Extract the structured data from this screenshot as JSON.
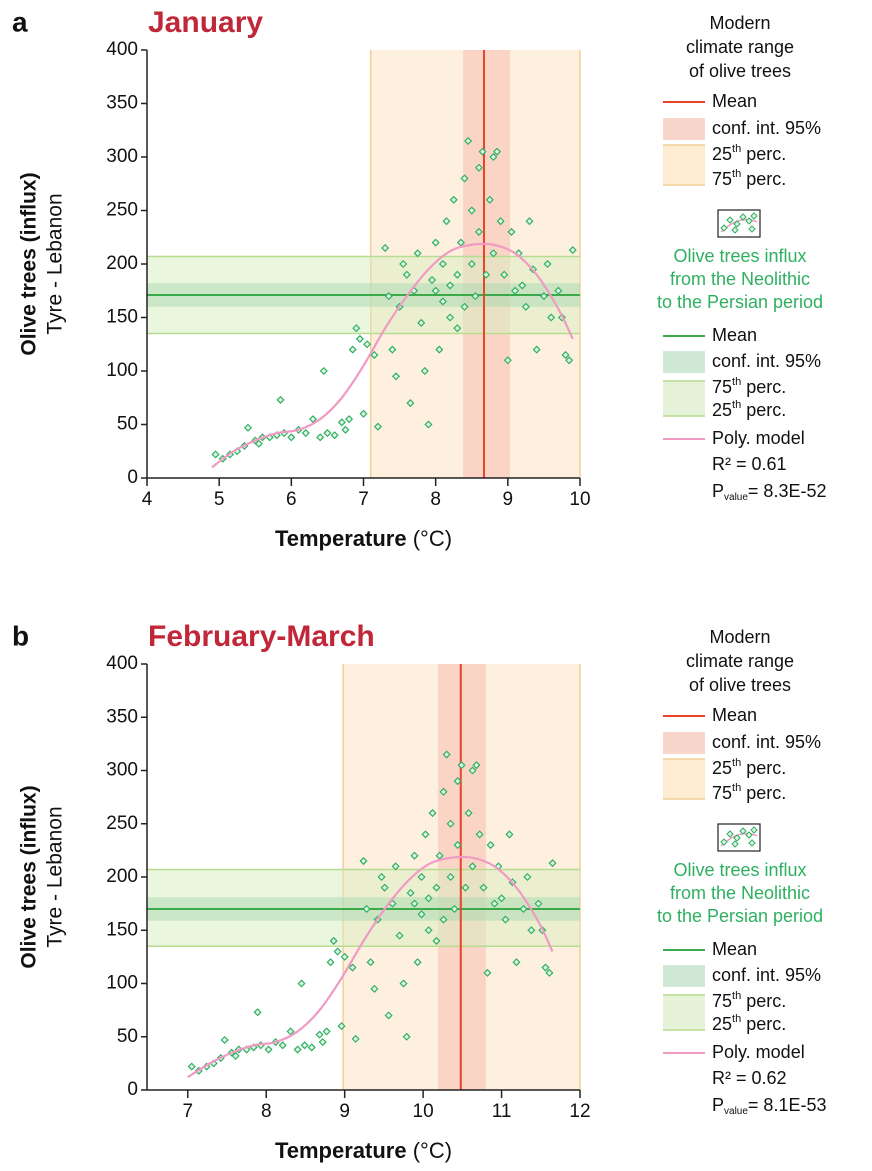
{
  "chart_data": [
    {
      "type": "scatter",
      "panel_label": "a",
      "title": "January",
      "ylabel": [
        "Olive trees (influx)",
        "Tyre - Lebanon"
      ],
      "xlabel": "Temperature",
      "xunit": "(°C)",
      "xlim": [
        4,
        10
      ],
      "xticks": [
        4,
        5,
        6,
        7,
        8,
        9,
        10
      ],
      "ylim": [
        0,
        400
      ],
      "yticks": [
        0,
        50,
        100,
        150,
        200,
        250,
        300,
        350,
        400
      ],
      "modern_range": {
        "mean": 8.67,
        "ci": [
          8.38,
          9.03
        ],
        "p25": 7.1,
        "p75": 10.0,
        "color": "#e8442a"
      },
      "influx_range": {
        "mean": 171,
        "ci": [
          160,
          182
        ],
        "p75": 207,
        "p25": 135,
        "color": "#3aaa4a"
      },
      "points": {
        "color": "#2eb060",
        "x": [
          4.95,
          5.05,
          5.15,
          5.25,
          5.35,
          5.4,
          5.5,
          5.55,
          5.6,
          5.7,
          5.8,
          5.85,
          5.9,
          6.0,
          6.1,
          6.2,
          6.3,
          6.4,
          6.45,
          6.5,
          6.6,
          6.7,
          6.75,
          6.8,
          6.85,
          6.9,
          6.95,
          7.0,
          7.05,
          7.15,
          7.2,
          7.3,
          7.35,
          7.4,
          7.45,
          7.5,
          7.55,
          7.6,
          7.65,
          7.7,
          7.75,
          7.8,
          7.85,
          7.9,
          7.95,
          8.0,
          8.0,
          8.05,
          8.1,
          8.1,
          8.15,
          8.2,
          8.2,
          8.25,
          8.3,
          8.3,
          8.35,
          8.4,
          8.4,
          8.45,
          8.5,
          8.5,
          8.55,
          8.6,
          8.6,
          8.65,
          8.7,
          8.75,
          8.8,
          8.8,
          8.85,
          8.9,
          8.95,
          9.0,
          9.05,
          9.1,
          9.15,
          9.2,
          9.25,
          9.3,
          9.35,
          9.4,
          9.5,
          9.55,
          9.6,
          9.7,
          9.8,
          9.85,
          9.9,
          9.75
        ],
        "y": [
          22,
          18,
          22,
          25,
          30,
          47,
          35,
          32,
          38,
          38,
          40,
          73,
          42,
          38,
          45,
          42,
          55,
          38,
          100,
          42,
          40,
          52,
          45,
          55,
          120,
          140,
          130,
          60,
          125,
          115,
          48,
          215,
          170,
          120,
          95,
          160,
          200,
          190,
          70,
          175,
          210,
          145,
          100,
          50,
          185,
          175,
          220,
          120,
          165,
          200,
          240,
          150,
          180,
          260,
          190,
          140,
          220,
          280,
          160,
          315,
          200,
          250,
          170,
          290,
          230,
          305,
          190,
          260,
          300,
          210,
          305,
          240,
          190,
          110,
          230,
          175,
          210,
          180,
          160,
          240,
          195,
          120,
          170,
          200,
          150,
          175,
          115,
          110,
          213,
          150
        ]
      },
      "model": {
        "color": "#f09ac4",
        "x": [
          4.9,
          5.2,
          5.5,
          5.8,
          6.1,
          6.4,
          6.7,
          7.0,
          7.3,
          7.6,
          7.9,
          8.2,
          8.5,
          8.8,
          9.1,
          9.4,
          9.7,
          9.9
        ],
        "y": [
          10,
          25,
          35,
          42,
          45,
          55,
          75,
          105,
          140,
          170,
          195,
          212,
          218,
          218,
          210,
          190,
          158,
          130
        ]
      },
      "legend": {
        "modern_title": [
          "Modern",
          "climate range",
          "of olive trees"
        ],
        "modern_mean": "Mean",
        "modern_ci": "conf. int. 95%",
        "modern_p25": [
          "25",
          "th",
          " perc."
        ],
        "modern_p75": [
          "75",
          "th",
          " perc."
        ],
        "influx_title": [
          "Olive trees influx",
          "from the Neolithic",
          "to the Persian period"
        ],
        "influx_mean": "Mean",
        "influx_ci": "conf. int. 95%",
        "influx_p75": [
          "75",
          "th",
          " perc."
        ],
        "influx_p25": [
          "25",
          "th",
          " perc."
        ],
        "model": "Poly. model",
        "r2": "R² = 0.61",
        "p": [
          "P",
          "value",
          "= 8.3E-52"
        ]
      }
    },
    {
      "type": "scatter",
      "panel_label": "b",
      "title": "February-March",
      "ylabel": [
        "Olive trees (influx)",
        "Tyre - Lebanon"
      ],
      "xlabel": "Temperature",
      "xunit": "(°C)",
      "xlim": [
        6.48,
        12
      ],
      "xticks": [
        7,
        8,
        9,
        10,
        11,
        12
      ],
      "ylim": [
        0,
        400
      ],
      "yticks": [
        0,
        50,
        100,
        150,
        200,
        250,
        300,
        350,
        400
      ],
      "modern_range": {
        "mean": 10.48,
        "ci": [
          10.19,
          10.8
        ],
        "p25": 8.98,
        "p75": 12.0,
        "color": "#e8442a"
      },
      "influx_range": {
        "mean": 170,
        "ci": [
          159,
          181
        ],
        "p75": 207,
        "p25": 135,
        "color": "#3aaa4a"
      },
      "points": {
        "color": "#2eb060",
        "x": [
          7.05,
          7.14,
          7.24,
          7.33,
          7.42,
          7.47,
          7.56,
          7.61,
          7.65,
          7.75,
          7.84,
          7.89,
          7.93,
          8.03,
          8.12,
          8.21,
          8.31,
          8.4,
          8.45,
          8.49,
          8.58,
          8.68,
          8.72,
          8.77,
          8.82,
          8.86,
          8.91,
          8.96,
          9.0,
          9.1,
          9.14,
          9.24,
          9.28,
          9.33,
          9.38,
          9.42,
          9.47,
          9.51,
          9.56,
          9.61,
          9.65,
          9.7,
          9.75,
          9.79,
          9.84,
          9.89,
          9.89,
          9.93,
          9.98,
          9.98,
          10.03,
          10.07,
          10.07,
          10.12,
          10.17,
          10.17,
          10.21,
          10.26,
          10.26,
          10.3,
          10.35,
          10.35,
          10.4,
          10.44,
          10.44,
          10.49,
          10.54,
          10.58,
          10.63,
          10.63,
          10.68,
          10.72,
          10.77,
          10.82,
          10.86,
          10.91,
          10.96,
          11.0,
          11.05,
          11.1,
          11.14,
          11.19,
          11.28,
          11.33,
          11.38,
          11.47,
          11.56,
          11.61,
          11.65,
          11.52
        ],
        "y": [
          22,
          18,
          22,
          25,
          30,
          47,
          35,
          32,
          38,
          38,
          40,
          73,
          42,
          38,
          45,
          42,
          55,
          38,
          100,
          42,
          40,
          52,
          45,
          55,
          120,
          140,
          130,
          60,
          125,
          115,
          48,
          215,
          170,
          120,
          95,
          160,
          200,
          190,
          70,
          175,
          210,
          145,
          100,
          50,
          185,
          175,
          220,
          120,
          165,
          200,
          240,
          150,
          180,
          260,
          190,
          140,
          220,
          280,
          160,
          315,
          200,
          250,
          170,
          290,
          230,
          305,
          190,
          260,
          300,
          210,
          305,
          240,
          190,
          110,
          230,
          175,
          210,
          180,
          160,
          240,
          195,
          120,
          170,
          200,
          150,
          175,
          115,
          110,
          213,
          150
        ]
      },
      "model": {
        "color": "#f09ac4",
        "x": [
          7.0,
          7.28,
          7.56,
          7.84,
          8.12,
          8.4,
          8.68,
          8.96,
          9.24,
          9.51,
          9.79,
          10.07,
          10.35,
          10.63,
          10.91,
          11.19,
          11.47,
          11.65
        ],
        "y": [
          12,
          25,
          35,
          42,
          45,
          55,
          75,
          105,
          140,
          170,
          195,
          212,
          218,
          218,
          210,
          190,
          158,
          130
        ]
      },
      "legend": {
        "modern_title": [
          "Modern",
          "climate range",
          "of olive trees"
        ],
        "modern_mean": "Mean",
        "modern_ci": "conf. int. 95%",
        "modern_p25": [
          "25",
          "th",
          " perc."
        ],
        "modern_p75": [
          "75",
          "th",
          " perc."
        ],
        "influx_title": [
          "Olive trees influx",
          "from the Neolithic",
          "to the Persian period"
        ],
        "influx_mean": "Mean",
        "influx_ci": "conf. int. 95%",
        "influx_p75": [
          "75",
          "th",
          " perc."
        ],
        "influx_p25": [
          "25",
          "th",
          " perc."
        ],
        "model": "Poly. model",
        "r2": "R² = 0.62",
        "p": [
          "P",
          "value",
          "= 8.1E-53"
        ]
      }
    }
  ]
}
